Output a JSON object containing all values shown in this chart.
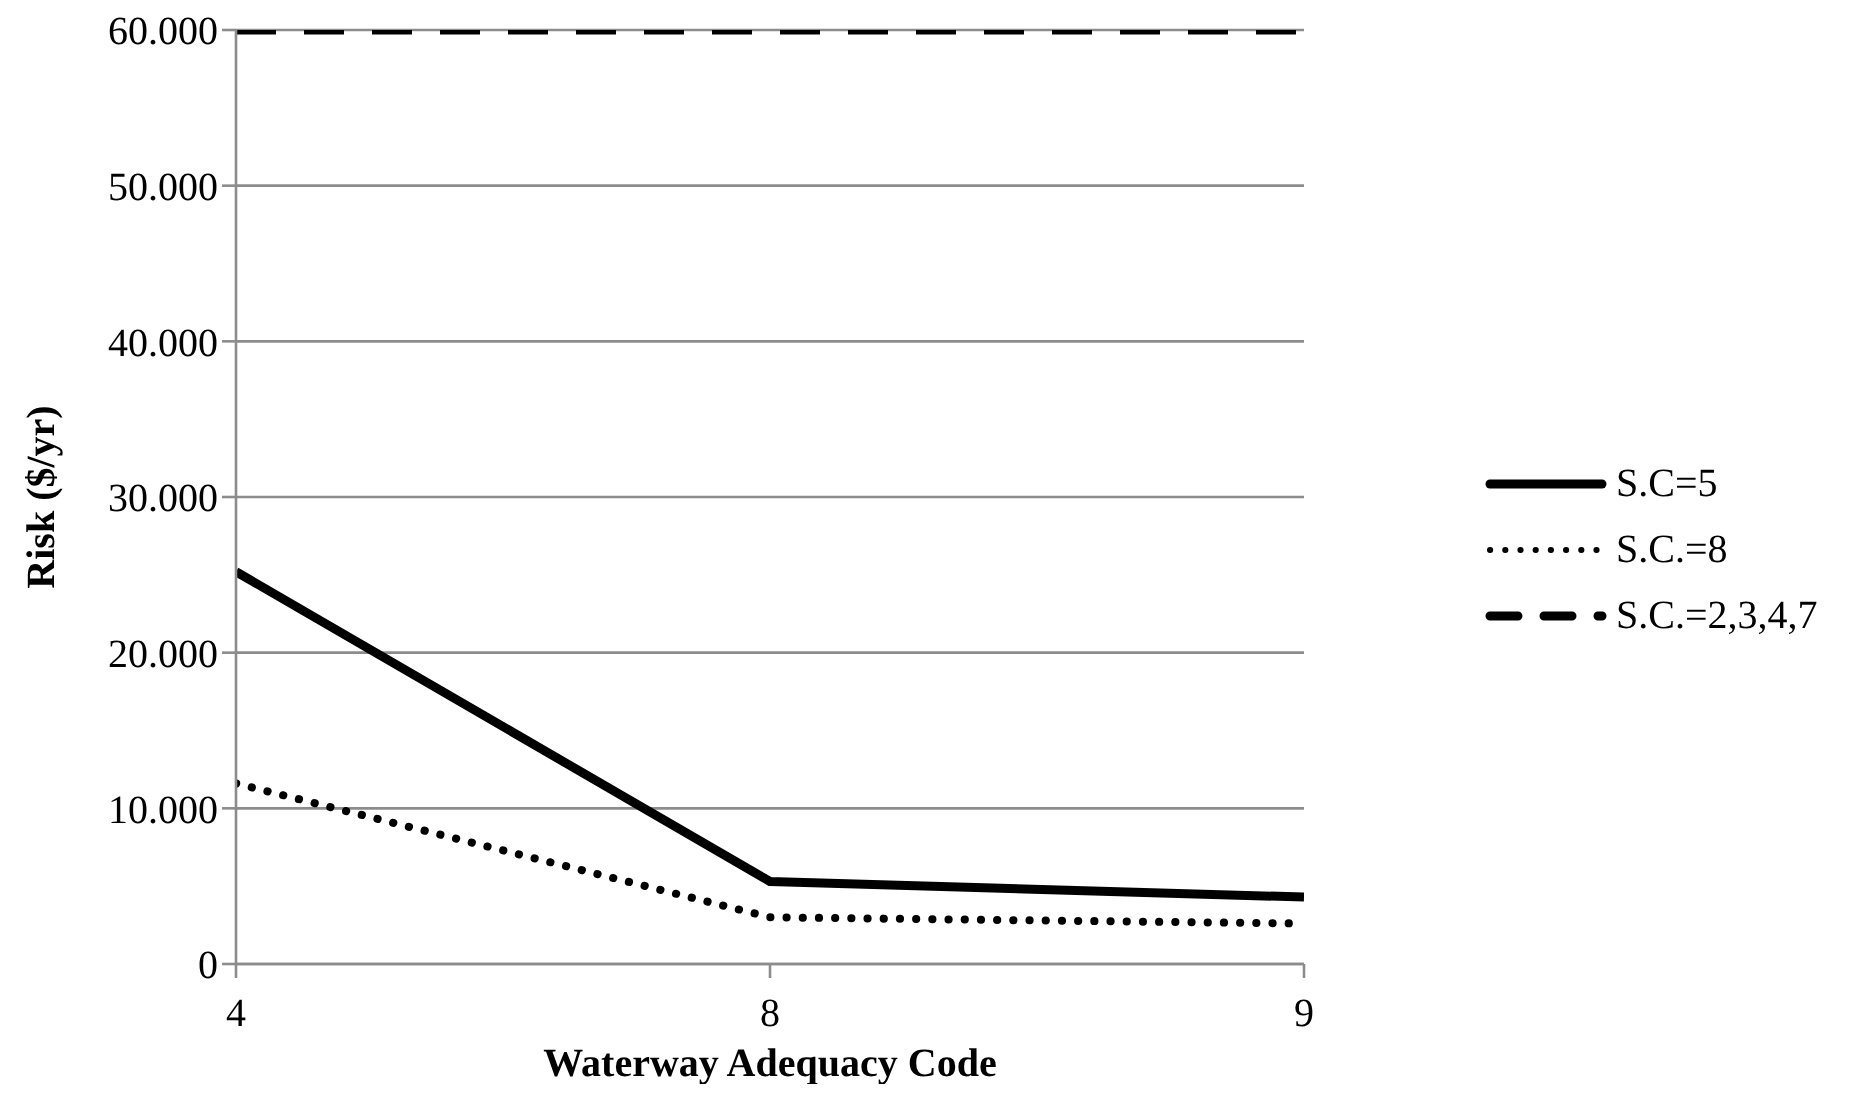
{
  "chart_data": {
    "type": "line",
    "xlabel": "Waterway Adequacy Code",
    "ylabel": "Risk ($/yr)",
    "categories": [
      "4",
      "8",
      "9"
    ],
    "series": [
      {
        "name": "S.C=5",
        "color": "#000000",
        "line_style": "solid",
        "values": [
          25200,
          5300,
          4300
        ]
      },
      {
        "name": "S.C.=8",
        "color": "#000000",
        "line_style": "dotted",
        "values": [
          11600,
          3000,
          2600
        ]
      },
      {
        "name": "S.C.=2,3,4,7",
        "color": "#000000",
        "line_style": "dashed",
        "values": [
          60000,
          60000,
          60000
        ]
      }
    ],
    "ylim": [
      0,
      60000
    ],
    "yticks": [
      0,
      {
        "value": 10000,
        "label": "10.000"
      },
      {
        "value": 20000,
        "label": "20.000"
      },
      {
        "value": 30000,
        "label": "30.000"
      },
      {
        "value": 40000,
        "label": "40.000"
      },
      {
        "value": 50000,
        "label": "50.000"
      },
      {
        "value": 60000,
        "label": "60.000"
      }
    ],
    "grid": "y",
    "legend": "right",
    "marker": "none"
  }
}
